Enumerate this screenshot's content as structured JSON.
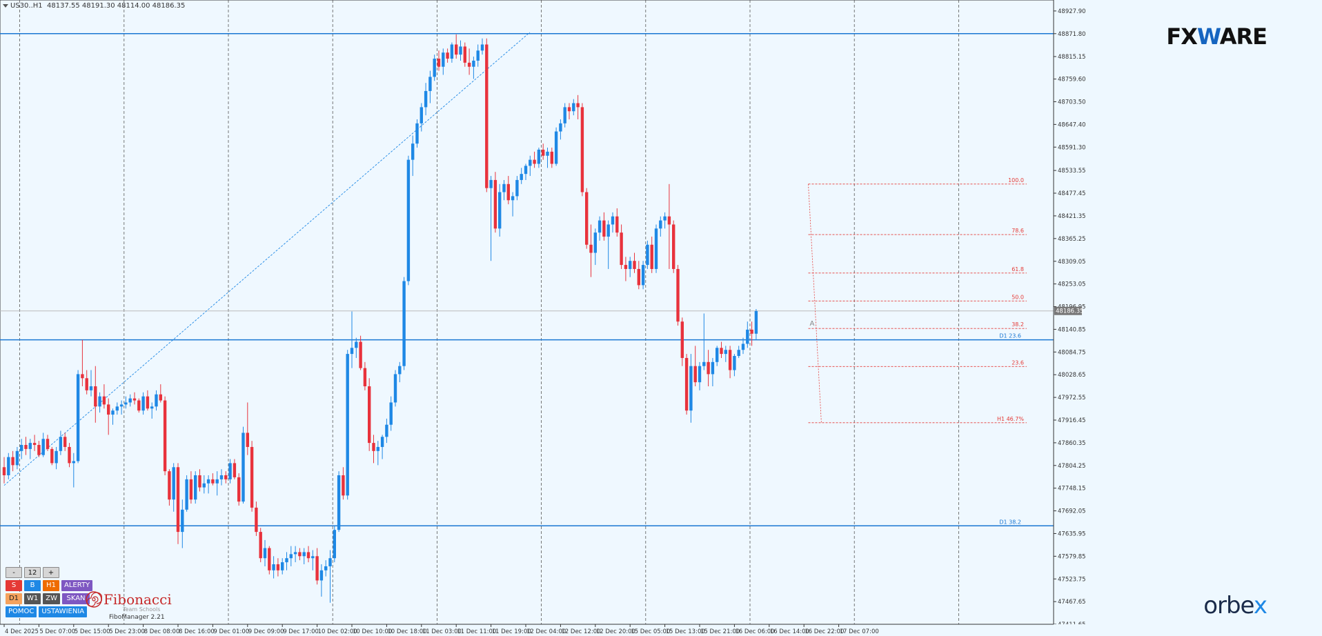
{
  "header": {
    "symbol": "US30..H1",
    "ohlc": "48137.55 48191.30 48114.00 48186.35"
  },
  "brand": {
    "left": "FX",
    "w": "W",
    "right": "ARE"
  },
  "broker": {
    "pre": "orbe",
    "x": "x"
  },
  "panel": {
    "minus": "-",
    "value": "12",
    "plus": "+",
    "s": "S",
    "b": "B",
    "h1": "H1",
    "alerty": "ALERTY",
    "d1": "D1",
    "w1": "W1",
    "zw": "ZW",
    "skan": "SKAN",
    "pomoc": "POMOC",
    "ustawienia": "USTAWIENIA"
  },
  "fibo": {
    "title": "Fibonacci",
    "subtitle": "Team Schools",
    "version": "FiboManager 2.21"
  },
  "colors": {
    "bull": "#1e88e5",
    "bear": "#e8323c",
    "level": "#1976d2",
    "fib": "#e53935",
    "grid": "#555555",
    "zone": "#ffcdd2",
    "demand": "#a8d8e8"
  },
  "chart_data": {
    "type": "candlestick",
    "ylim": [
      47411.65,
      48955.0
    ],
    "y_ticks": [
      48927.9,
      48871.8,
      48815.15,
      48759.6,
      48703.5,
      48647.4,
      48591.3,
      48533.55,
      48477.45,
      48421.35,
      48365.25,
      48309.05,
      48253.05,
      48196.95,
      48140.85,
      48084.75,
      48028.65,
      47972.55,
      47916.45,
      47860.35,
      47804.25,
      47748.15,
      47692.05,
      47635.95,
      47579.85,
      47523.75,
      47467.65,
      47411.65
    ],
    "y_tick_labels": [
      "48927.90",
      "48871.80",
      "48815.15",
      "48759.60",
      "48703.50",
      "48647.40",
      "48591.30",
      "48533.55",
      "48477.45",
      "48421.35",
      "48365.25",
      "48309.05",
      "48253.05",
      "48196.95",
      "48140.85",
      "48084.75",
      "48028.65",
      "47972.55",
      "47916.45",
      "47860.35",
      "47804.25",
      "47748.15",
      "47692.05",
      "47635.95",
      "47579.85",
      "47523.75",
      "47467.65",
      "47411.65"
    ],
    "current_price": 48186.35,
    "current_price_label": "48186.35",
    "x_tick_labels": [
      "4 Dec 2025",
      "5 Dec 07:00",
      "5 Dec 15:00",
      "5 Dec 23:00",
      "8 Dec 08:00",
      "8 Dec 16:00",
      "9 Dec 01:00",
      "9 Dec 09:00",
      "9 Dec 17:00",
      "10 Dec 02:00",
      "10 Dec 10:00",
      "10 Dec 18:00",
      "11 Dec 03:00",
      "11 Dec 11:00",
      "11 Dec 19:00",
      "12 Dec 04:00",
      "12 Dec 12:00",
      "12 Dec 20:00",
      "15 Dec 05:00",
      "15 Dec 13:00",
      "15 Dec 21:00",
      "16 Dec 06:00",
      "16 Dec 14:00",
      "16 Dec 22:00",
      "17 Dec 07:00"
    ],
    "x_tick_bars": [
      0,
      8,
      16,
      24,
      32,
      40,
      48,
      56,
      64,
      72,
      80,
      88,
      96,
      104,
      112,
      120,
      128,
      136,
      144,
      152,
      160,
      168,
      176,
      184,
      192
    ],
    "grid_bars": [
      2,
      26,
      50,
      74,
      98,
      122,
      146,
      170,
      194,
      218
    ],
    "bars_per_grid_note": "",
    "horizontal_levels": [
      {
        "price": 48871.8,
        "label": ""
      },
      {
        "price": 48115.0,
        "label": "D1 23.6"
      },
      {
        "price": 47655.0,
        "label": "D1 38.2"
      }
    ],
    "fib_levels": [
      {
        "ratio_label": "100.0",
        "price": 48500.0
      },
      {
        "ratio_label": "78.6",
        "price": 48375.0
      },
      {
        "ratio_label": "61.8",
        "price": 48280.0
      },
      {
        "ratio_label": "50.0",
        "price": 48211.0
      },
      {
        "ratio_label": "38.2",
        "price": 48143.0
      },
      {
        "ratio_label": "23.6",
        "price": 48049.0
      },
      {
        "ratio_label": "H1 46.7%",
        "price": 47910.0
      }
    ],
    "fib_marker": "A",
    "trendline": {
      "from_bar": 0,
      "from_price": 47755.0,
      "to_bar": 113,
      "to_price": 48875.0
    },
    "candles": [
      [
        47800,
        47825,
        47760,
        47780
      ],
      [
        47780,
        47835,
        47770,
        47825
      ],
      [
        47825,
        47840,
        47790,
        47805
      ],
      [
        47805,
        47850,
        47795,
        47840
      ],
      [
        47840,
        47870,
        47820,
        47855
      ],
      [
        47855,
        47875,
        47830,
        47845
      ],
      [
        47845,
        47870,
        47820,
        47860
      ],
      [
        47860,
        47880,
        47840,
        47855
      ],
      [
        47855,
        47865,
        47825,
        47830
      ],
      [
        47830,
        47885,
        47825,
        47870
      ],
      [
        47870,
        47880,
        47840,
        47845
      ],
      [
        47845,
        47850,
        47805,
        47810
      ],
      [
        47810,
        47850,
        47795,
        47840
      ],
      [
        47840,
        47890,
        47830,
        47875
      ],
      [
        47875,
        47885,
        47840,
        47850
      ],
      [
        47850,
        47860,
        47800,
        47810
      ],
      [
        47810,
        47835,
        47750,
        47815
      ],
      [
        47815,
        48040,
        47810,
        48030
      ],
      [
        48030,
        48115,
        48000,
        48020
      ],
      [
        48020,
        48040,
        47980,
        47990
      ],
      [
        47990,
        48040,
        47975,
        48000
      ],
      [
        48000,
        48050,
        47910,
        47950
      ],
      [
        47950,
        47985,
        47935,
        47975
      ],
      [
        47975,
        48005,
        47945,
        47955
      ],
      [
        47955,
        47970,
        47880,
        47930
      ],
      [
        47930,
        47945,
        47905,
        47940
      ],
      [
        47940,
        47960,
        47930,
        47950
      ],
      [
        47950,
        47965,
        47930,
        47955
      ],
      [
        47955,
        47975,
        47945,
        47960
      ],
      [
        47960,
        47980,
        47950,
        47970
      ],
      [
        47970,
        47985,
        47955,
        47965
      ],
      [
        47965,
        47970,
        47935,
        47940
      ],
      [
        47940,
        47985,
        47930,
        47975
      ],
      [
        47975,
        47990,
        47940,
        47945
      ],
      [
        47945,
        47960,
        47920,
        47950
      ],
      [
        47950,
        47990,
        47940,
        47980
      ],
      [
        47980,
        48005,
        47960,
        47965
      ],
      [
        47965,
        47975,
        47780,
        47790
      ],
      [
        47790,
        47795,
        47705,
        47720
      ],
      [
        47720,
        47810,
        47690,
        47800
      ],
      [
        47800,
        47810,
        47610,
        47640
      ],
      [
        47640,
        47720,
        47600,
        47695
      ],
      [
        47695,
        47780,
        47690,
        47770
      ],
      [
        47770,
        47790,
        47710,
        47720
      ],
      [
        47720,
        47790,
        47710,
        47780
      ],
      [
        47780,
        47795,
        47740,
        47750
      ],
      [
        47750,
        47780,
        47735,
        47760
      ],
      [
        47760,
        47780,
        47735,
        47770
      ],
      [
        47770,
        47785,
        47755,
        47760
      ],
      [
        47760,
        47790,
        47730,
        47770
      ],
      [
        47770,
        47795,
        47755,
        47780
      ],
      [
        47780,
        47790,
        47760,
        47770
      ],
      [
        47770,
        47820,
        47760,
        47810
      ],
      [
        47810,
        47820,
        47770,
        47775
      ],
      [
        47775,
        47785,
        47705,
        47715
      ],
      [
        47715,
        47900,
        47710,
        47885
      ],
      [
        47885,
        47960,
        47830,
        47850
      ],
      [
        47850,
        47865,
        47690,
        47700
      ],
      [
        47700,
        47715,
        47630,
        47640
      ],
      [
        47640,
        47650,
        47565,
        47575
      ],
      [
        47575,
        47620,
        47555,
        47600
      ],
      [
        47600,
        47605,
        47535,
        47545
      ],
      [
        47545,
        47580,
        47525,
        47560
      ],
      [
        47560,
        47575,
        47530,
        47545
      ],
      [
        47545,
        47575,
        47535,
        47565
      ],
      [
        47565,
        47590,
        47545,
        47575
      ],
      [
        47575,
        47605,
        47555,
        47585
      ],
      [
        47585,
        47605,
        47565,
        47590
      ],
      [
        47590,
        47600,
        47570,
        47580
      ],
      [
        47580,
        47600,
        47560,
        47590
      ],
      [
        47590,
        47605,
        47565,
        47575
      ],
      [
        47575,
        47595,
        47545,
        47580
      ],
      [
        47580,
        47600,
        47510,
        47520
      ],
      [
        47520,
        47560,
        47480,
        47545
      ],
      [
        47545,
        47570,
        47530,
        47555
      ],
      [
        47555,
        47595,
        47465,
        47575
      ],
      [
        47575,
        47655,
        47565,
        47645
      ],
      [
        47645,
        47790,
        47640,
        47780
      ],
      [
        47780,
        47800,
        47720,
        47730
      ],
      [
        47730,
        48090,
        47720,
        48080
      ],
      [
        48080,
        48185,
        48045,
        48095
      ],
      [
        48095,
        48120,
        48070,
        48110
      ],
      [
        48110,
        48125,
        48040,
        48045
      ],
      [
        48045,
        48060,
        47990,
        48000
      ],
      [
        48000,
        48020,
        47840,
        47860
      ],
      [
        47860,
        47880,
        47810,
        47840
      ],
      [
        47840,
        47865,
        47805,
        47850
      ],
      [
        47850,
        47880,
        47820,
        47875
      ],
      [
        47875,
        47920,
        47860,
        47905
      ],
      [
        47905,
        47975,
        47890,
        47960
      ],
      [
        47960,
        48040,
        47950,
        48030
      ],
      [
        48030,
        48060,
        48010,
        48050
      ],
      [
        48050,
        48270,
        48040,
        48260
      ],
      [
        48260,
        48570,
        48250,
        48560
      ],
      [
        48560,
        48620,
        48520,
        48600
      ],
      [
        48600,
        48660,
        48590,
        48650
      ],
      [
        48650,
        48700,
        48630,
        48690
      ],
      [
        48690,
        48750,
        48670,
        48730
      ],
      [
        48730,
        48780,
        48700,
        48765
      ],
      [
        48765,
        48820,
        48755,
        48810
      ],
      [
        48810,
        48830,
        48780,
        48790
      ],
      [
        48790,
        48835,
        48770,
        48825
      ],
      [
        48825,
        48835,
        48800,
        48810
      ],
      [
        48810,
        48850,
        48800,
        48845
      ],
      [
        48845,
        48870,
        48810,
        48820
      ],
      [
        48820,
        48855,
        48805,
        48840
      ],
      [
        48840,
        48850,
        48790,
        48800
      ],
      [
        48800,
        48835,
        48770,
        48790
      ],
      [
        48790,
        48815,
        48760,
        48805
      ],
      [
        48805,
        48845,
        48790,
        48830
      ],
      [
        48830,
        48860,
        48820,
        48845
      ],
      [
        48845,
        48860,
        48480,
        48490
      ],
      [
        48490,
        48520,
        48310,
        48510
      ],
      [
        48510,
        48530,
        48380,
        48390
      ],
      [
        48390,
        48500,
        48370,
        48480
      ],
      [
        48480,
        48510,
        48460,
        48500
      ],
      [
        48500,
        48520,
        48450,
        48460
      ],
      [
        48460,
        48480,
        48420,
        48470
      ],
      [
        48470,
        48520,
        48460,
        48510
      ],
      [
        48510,
        48540,
        48500,
        48525
      ],
      [
        48525,
        48550,
        48510,
        48545
      ],
      [
        48545,
        48570,
        48520,
        48560
      ],
      [
        48560,
        48580,
        48540,
        48550
      ],
      [
        48550,
        48590,
        48540,
        48585
      ],
      [
        48585,
        48600,
        48560,
        48570
      ],
      [
        48570,
        48590,
        48540,
        48580
      ],
      [
        48580,
        48590,
        48540,
        48550
      ],
      [
        48550,
        48640,
        48545,
        48630
      ],
      [
        48630,
        48660,
        48610,
        48650
      ],
      [
        48650,
        48700,
        48640,
        48690
      ],
      [
        48690,
        48700,
        48660,
        48680
      ],
      [
        48680,
        48710,
        48670,
        48700
      ],
      [
        48700,
        48720,
        48660,
        48690
      ],
      [
        48690,
        48700,
        48470,
        48480
      ],
      [
        48480,
        48490,
        48340,
        48350
      ],
      [
        48350,
        48400,
        48270,
        48330
      ],
      [
        48330,
        48390,
        48300,
        48380
      ],
      [
        48380,
        48420,
        48360,
        48410
      ],
      [
        48410,
        48430,
        48360,
        48370
      ],
      [
        48370,
        48410,
        48290,
        48400
      ],
      [
        48400,
        48430,
        48380,
        48420
      ],
      [
        48420,
        48440,
        48370,
        48380
      ],
      [
        48380,
        48400,
        48290,
        48300
      ],
      [
        48300,
        48320,
        48260,
        48290
      ],
      [
        48290,
        48320,
        48270,
        48310
      ],
      [
        48310,
        48330,
        48280,
        48290
      ],
      [
        48290,
        48310,
        48240,
        48250
      ],
      [
        48250,
        48310,
        48240,
        48300
      ],
      [
        48300,
        48360,
        48290,
        48350
      ],
      [
        48350,
        48370,
        48280,
        48290
      ],
      [
        48290,
        48400,
        48280,
        48390
      ],
      [
        48390,
        48420,
        48370,
        48410
      ],
      [
        48410,
        48430,
        48390,
        48420
      ],
      [
        48420,
        48500,
        48290,
        48400
      ],
      [
        48400,
        48410,
        48280,
        48290
      ],
      [
        48290,
        48300,
        48150,
        48160
      ],
      [
        48160,
        48170,
        48050,
        48070
      ],
      [
        48070,
        48080,
        47930,
        47940
      ],
      [
        47940,
        48080,
        47910,
        48050
      ],
      [
        48050,
        48100,
        48000,
        48010
      ],
      [
        48010,
        48060,
        47990,
        48050
      ],
      [
        48050,
        48180,
        48040,
        48060
      ],
      [
        48060,
        48090,
        48000,
        48030
      ],
      [
        48030,
        48070,
        48000,
        48060
      ],
      [
        48060,
        48100,
        48050,
        48095
      ],
      [
        48095,
        48110,
        48070,
        48080
      ],
      [
        48080,
        48100,
        48060,
        48090
      ],
      [
        48090,
        48100,
        48020,
        48040
      ],
      [
        48040,
        48080,
        48025,
        48075
      ],
      [
        48075,
        48100,
        48070,
        48090
      ],
      [
        48090,
        48120,
        48080,
        48105
      ],
      [
        48105,
        48160,
        48095,
        48140
      ],
      [
        48140,
        48160,
        48100,
        48130
      ],
      [
        48130,
        48191,
        48114,
        48186
      ]
    ]
  }
}
